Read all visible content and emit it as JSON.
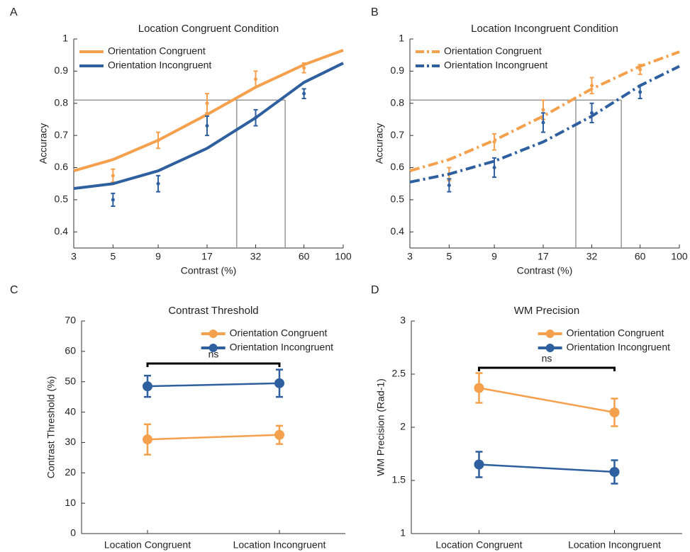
{
  "chart_data": [
    {
      "type": "line",
      "panel_label": "A",
      "title": "Location Congruent Condition",
      "xlabel": "Contrast (%)",
      "ylabel": "Accuracy",
      "xlog": true,
      "xlim": [
        3,
        100
      ],
      "xticks": [
        3,
        5,
        9,
        17,
        32,
        60,
        100
      ],
      "ylim": [
        0.35,
        1
      ],
      "yticks": [
        0.4,
        0.5,
        0.6,
        0.7,
        0.8,
        0.9,
        1
      ],
      "legend": "upper left",
      "dashed": false,
      "fit_x": [
        3,
        5,
        9,
        17,
        32,
        60,
        100
      ],
      "threshold": {
        "y": 0.81,
        "x": [
          25,
          47
        ]
      },
      "series": [
        {
          "name": "Orientation Congruent",
          "color": "#f5a04d",
          "x": [
            5,
            9,
            17,
            32,
            60
          ],
          "values": [
            0.575,
            0.685,
            0.8,
            0.875,
            0.91
          ],
          "errors": [
            0.02,
            0.025,
            0.03,
            0.025,
            0.015
          ],
          "fit_values": [
            0.59,
            0.625,
            0.685,
            0.765,
            0.85,
            0.92,
            0.965
          ]
        },
        {
          "name": "Orientation Incongruent",
          "color": "#2e5f9e",
          "x": [
            5,
            9,
            17,
            32,
            60
          ],
          "values": [
            0.5,
            0.55,
            0.73,
            0.755,
            0.83
          ],
          "errors": [
            0.02,
            0.025,
            0.03,
            0.025,
            0.015
          ],
          "fit_values": [
            0.535,
            0.55,
            0.59,
            0.66,
            0.755,
            0.865,
            0.925
          ]
        }
      ]
    },
    {
      "type": "line",
      "panel_label": "B",
      "title": "Location Incongruent Condition",
      "xlabel": "Contrast (%)",
      "ylabel": "Accuracy",
      "xlog": true,
      "xlim": [
        3,
        100
      ],
      "xticks": [
        3,
        5,
        9,
        17,
        32,
        60,
        100
      ],
      "ylim": [
        0.35,
        1
      ],
      "yticks": [
        0.4,
        0.5,
        0.6,
        0.7,
        0.8,
        0.9,
        1
      ],
      "legend": "upper left",
      "dashed": true,
      "fit_x": [
        3,
        5,
        9,
        17,
        32,
        60,
        100
      ],
      "threshold": {
        "y": 0.81,
        "x": [
          26,
          47
        ]
      },
      "series": [
        {
          "name": "Orientation Congruent",
          "color": "#f5a04d",
          "x": [
            5,
            9,
            17,
            32,
            60
          ],
          "values": [
            0.58,
            0.68,
            0.78,
            0.855,
            0.905
          ],
          "errors": [
            0.02,
            0.025,
            0.03,
            0.025,
            0.015
          ],
          "fit_values": [
            0.59,
            0.625,
            0.685,
            0.76,
            0.845,
            0.915,
            0.96
          ]
        },
        {
          "name": "Orientation Incongruent",
          "color": "#2e5f9e",
          "x": [
            5,
            9,
            17,
            32,
            60
          ],
          "values": [
            0.545,
            0.6,
            0.74,
            0.77,
            0.835
          ],
          "errors": [
            0.02,
            0.03,
            0.03,
            0.03,
            0.02
          ],
          "fit_values": [
            0.555,
            0.58,
            0.62,
            0.68,
            0.76,
            0.855,
            0.915
          ]
        }
      ]
    },
    {
      "type": "category-line",
      "panel_label": "C",
      "title": "Contrast Threshold",
      "ylabel": "Contrast Threshold (%)",
      "categories": [
        "Location Congruent",
        "Location Incongruent"
      ],
      "ylim": [
        0,
        70
      ],
      "yticks": [
        0,
        10,
        20,
        30,
        40,
        50,
        60,
        70
      ],
      "legend": "upper right",
      "annotation": {
        "text": "ns",
        "y": 56
      },
      "series": [
        {
          "name": "Orientation Congruent",
          "color": "#f5a04d",
          "values": [
            31,
            32.5
          ],
          "errors": [
            5,
            3
          ]
        },
        {
          "name": "Orientation Incongruent",
          "color": "#2e5f9e",
          "values": [
            48.5,
            49.5
          ],
          "errors": [
            3.5,
            4.5
          ]
        }
      ]
    },
    {
      "type": "category-line",
      "panel_label": "D",
      "title": "WM Precision",
      "ylabel": "WM Precision (Rad-1)",
      "categories": [
        "Location Congruent",
        "Location Incongruent"
      ],
      "ylim": [
        1,
        3
      ],
      "yticks": [
        1,
        1.5,
        2,
        2.5,
        3
      ],
      "legend": "upper right",
      "annotation": {
        "text": "ns",
        "y": 2.56
      },
      "series": [
        {
          "name": "Orientation Congruent",
          "color": "#f5a04d",
          "values": [
            2.37,
            2.14
          ],
          "errors": [
            0.14,
            0.13
          ]
        },
        {
          "name": "Orientation Incongruent",
          "color": "#2e5f9e",
          "values": [
            1.65,
            1.58
          ],
          "errors": [
            0.12,
            0.11
          ]
        }
      ]
    }
  ]
}
